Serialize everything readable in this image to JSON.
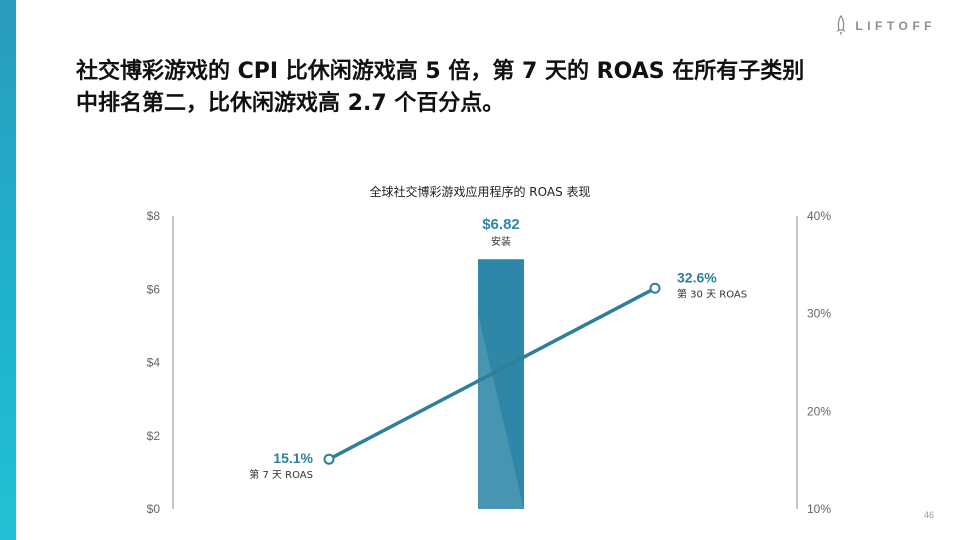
{
  "brand": {
    "name": "LIFTOFF",
    "accent": "#2e7f9b",
    "sidebar_color": "#1fb2cc"
  },
  "headline": {
    "line1": "社交博彩游戏的 CPI 比休闲游戏高 5 倍，第 7 天的 ROAS 在所有子类别",
    "line2": "中排名第二，比休闲游戏高 2.7 个百分点。"
  },
  "page_number": "46",
  "chart_data": {
    "type": "bar+line",
    "title": "全球社交博彩游戏应用程序的 ROAS 表现",
    "left_axis": {
      "ticks": [
        "$0",
        "$2",
        "$4",
        "$6",
        "$8"
      ],
      "range": [
        0,
        8
      ]
    },
    "right_axis": {
      "ticks": [
        "10%",
        "20%",
        "30%",
        "40%"
      ],
      "range": [
        10,
        40
      ]
    },
    "bar": {
      "value": 6.82,
      "data_label": "$6.82",
      "sub_label": "安装",
      "axis": "left",
      "color": "#2e87a6"
    },
    "line": {
      "axis": "right",
      "color": "#2e7f9b",
      "points": [
        {
          "position": "start",
          "value": 15.1,
          "data_label": "15.1%",
          "sub_label": "第 7 天 ROAS"
        },
        {
          "position": "end",
          "value": 32.6,
          "data_label": "32.6%",
          "sub_label": "第 30 天 ROAS"
        }
      ]
    },
    "grid": false
  }
}
